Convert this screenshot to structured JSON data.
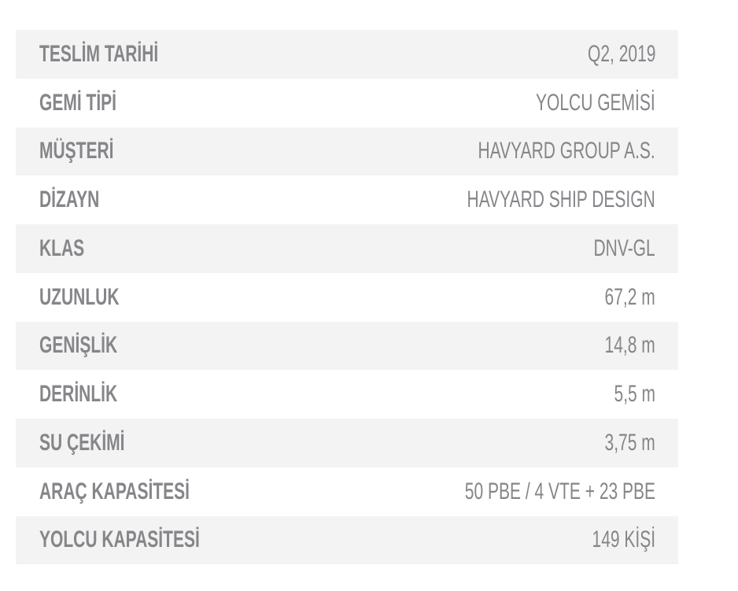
{
  "specs": [
    {
      "label": "TESLİM TARİHİ",
      "value": "Q2, 2019"
    },
    {
      "label": "GEMİ TİPİ",
      "value": "YOLCU GEMİSİ"
    },
    {
      "label": "MÜŞTERİ",
      "value": "HAVYARD GROUP A.S."
    },
    {
      "label": "DİZAYN",
      "value": "HAVYARD SHIP DESIGN"
    },
    {
      "label": "KLAS",
      "value": "DNV-GL"
    },
    {
      "label": "UZUNLUK",
      "value": "67,2 m"
    },
    {
      "label": "GENİŞLİK",
      "value": "14,8 m"
    },
    {
      "label": "DERİNLİK",
      "value": "5,5 m"
    },
    {
      "label": "SU ÇEKİMİ",
      "value": "3,75 m"
    },
    {
      "label": "ARAÇ KAPASİTESİ",
      "value": "50 PBE / 4 VTE + 23 PBE"
    },
    {
      "label": "YOLCU KAPASİTESİ",
      "value": "149 KİŞİ"
    }
  ]
}
